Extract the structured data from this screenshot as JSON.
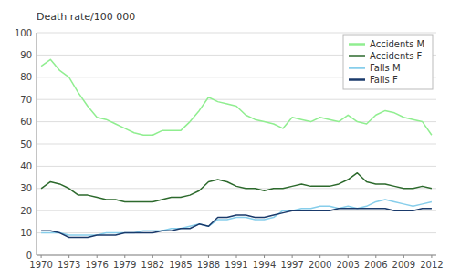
{
  "chart_data": {
    "type": "line",
    "ylabel": "Death rate/100 000",
    "x": [
      1970,
      1971,
      1972,
      1973,
      1974,
      1975,
      1976,
      1977,
      1978,
      1979,
      1980,
      1981,
      1982,
      1983,
      1984,
      1985,
      1986,
      1987,
      1988,
      1989,
      1990,
      1991,
      1992,
      1993,
      1994,
      1995,
      1996,
      1997,
      1998,
      1999,
      2000,
      2001,
      2002,
      2003,
      2004,
      2005,
      2006,
      2007,
      2008,
      2009,
      2010,
      2011,
      2012
    ],
    "series": [
      {
        "name": "Accidents M",
        "color": "#90ee90",
        "values": [
          85,
          88,
          83,
          80,
          73,
          67,
          62,
          61,
          59,
          57,
          55,
          54,
          54,
          56,
          56,
          56,
          60,
          65,
          71,
          69,
          68,
          67,
          63,
          61,
          60,
          59,
          57,
          62,
          61,
          60,
          62,
          61,
          60,
          63,
          60,
          59,
          63,
          65,
          64,
          62,
          61,
          60,
          54
        ]
      },
      {
        "name": "Accidents F",
        "color": "#2d6a2d",
        "values": [
          30,
          33,
          32,
          30,
          27,
          27,
          26,
          25,
          25,
          24,
          24,
          24,
          24,
          25,
          26,
          26,
          27,
          29,
          33,
          34,
          33,
          31,
          30,
          30,
          29,
          30,
          30,
          31,
          32,
          31,
          31,
          31,
          32,
          34,
          37,
          33,
          32,
          32,
          31,
          30,
          30,
          31,
          30
        ]
      },
      {
        "name": "Falls M",
        "color": "#87ceeb",
        "values": [
          10,
          10,
          10,
          9,
          9,
          9,
          9,
          10,
          10,
          10,
          10,
          11,
          11,
          11,
          12,
          12,
          13,
          14,
          13,
          16,
          16,
          17,
          17,
          16,
          16,
          17,
          20,
          20,
          21,
          21,
          22,
          22,
          21,
          22,
          21,
          22,
          24,
          25,
          24,
          23,
          22,
          23,
          24
        ]
      },
      {
        "name": "Falls F",
        "color": "#1a3a6b",
        "values": [
          11,
          11,
          10,
          8,
          8,
          8,
          9,
          9,
          9,
          10,
          10,
          10,
          10,
          11,
          11,
          12,
          12,
          14,
          13,
          17,
          17,
          18,
          18,
          17,
          17,
          18,
          19,
          20,
          20,
          20,
          20,
          20,
          21,
          21,
          21,
          21,
          21,
          21,
          20,
          20,
          20,
          21,
          21
        ]
      }
    ],
    "xlim": [
      1969.5,
      2012.5
    ],
    "xticks": [
      1970,
      1973,
      1976,
      1979,
      1982,
      1985,
      1988,
      1991,
      1994,
      1997,
      2000,
      2003,
      2006,
      2009,
      2012
    ],
    "ylim": [
      0,
      100
    ],
    "yticks": [
      0,
      10,
      20,
      30,
      40,
      50,
      60,
      70,
      80,
      90,
      100
    ],
    "grid": true,
    "legend": "upper right"
  }
}
